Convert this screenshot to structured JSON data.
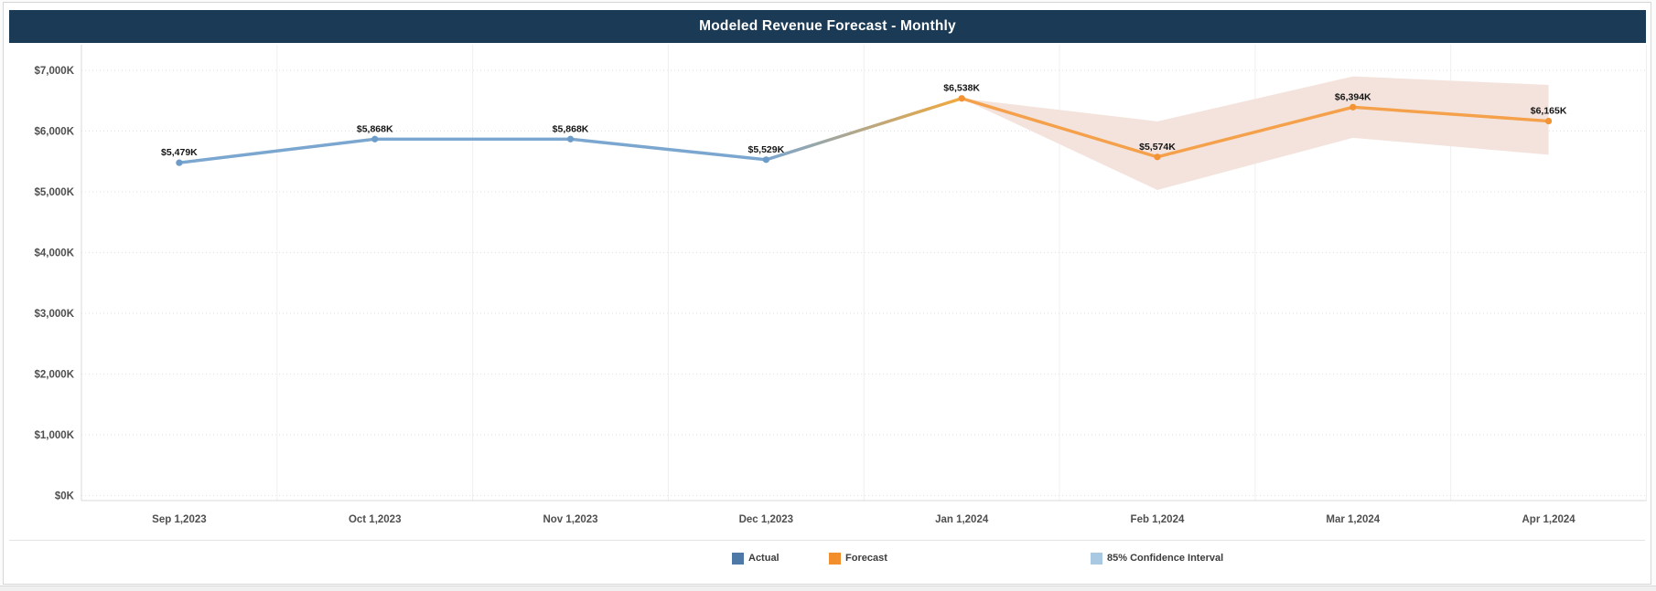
{
  "header": {
    "title": "Modeled Revenue Forecast - Monthly",
    "bg_color": "#1b3a55",
    "text_color": "#ffffff"
  },
  "legend": {
    "items": [
      {
        "label": "Actual",
        "color": "#4e79a7"
      },
      {
        "label": "Forecast",
        "color": "#f28e2b"
      },
      {
        "label": "85% Confidence Interval",
        "color": "#a9c8e1"
      }
    ],
    "position": "bottom"
  },
  "chart_data": {
    "type": "line",
    "title": "Modeled Revenue Forecast - Monthly",
    "xlabel": "",
    "ylabel": "",
    "categories": [
      "Sep 1,2023",
      "Oct 1,2023",
      "Nov 1,2023",
      "Dec 1,2023",
      "Jan 1,2024",
      "Feb 1,2024",
      "Mar 1,2024",
      "Apr 1,2024"
    ],
    "series": [
      {
        "name": "Actual",
        "color": "#7aa6cf",
        "marker_color": "#6d9cc9",
        "values": [
          5479,
          5868,
          5868,
          5529,
          null,
          null,
          null,
          null
        ],
        "labels": [
          "$5,479K",
          "$5,868K",
          "$5,868K",
          "$5,529K",
          null,
          null,
          null,
          null
        ]
      },
      {
        "name": "Forecast",
        "color": "#f5a04a",
        "marker_color": "#f39334",
        "values": [
          null,
          null,
          null,
          null,
          6538,
          5574,
          6394,
          6165
        ],
        "labels": [
          null,
          null,
          null,
          null,
          "$6,538K",
          "$5,574K",
          "$6,394K",
          "$6,165K"
        ]
      }
    ],
    "bridge_segment": {
      "from_category_index": 3,
      "to_category_index": 4,
      "gradient_from": "#7aa6cf",
      "gradient_to": "#f2a93b"
    },
    "confidence_band": {
      "name": "85% Confidence Interval",
      "fill": "#f3e3dc",
      "start_category_index": 4,
      "upper": [
        6538,
        6160,
        6900,
        6760
      ],
      "lower": [
        6538,
        5030,
        5890,
        5610
      ]
    },
    "y_axis": {
      "range": [
        0,
        7000
      ],
      "tick_step": 1000,
      "ticks": [
        {
          "value": 0,
          "label": "$0K"
        },
        {
          "value": 1000,
          "label": "$1,000K"
        },
        {
          "value": 2000,
          "label": "$2,000K"
        },
        {
          "value": 3000,
          "label": "$3,000K"
        },
        {
          "value": 4000,
          "label": "$4,000K"
        },
        {
          "value": 5000,
          "label": "$5,000K"
        },
        {
          "value": 6000,
          "label": "$6,000K"
        },
        {
          "value": 7000,
          "label": "$7,000K"
        }
      ],
      "grid": "dotted"
    },
    "grid": true,
    "legend_position": "bottom"
  },
  "style_colors": {
    "grid_dotted": "#e5e1df",
    "grid_vertical": "#f1eeee",
    "axis_line": "#d8d8d8",
    "tick_label": "#4f4f4f",
    "data_label": "#141414"
  }
}
